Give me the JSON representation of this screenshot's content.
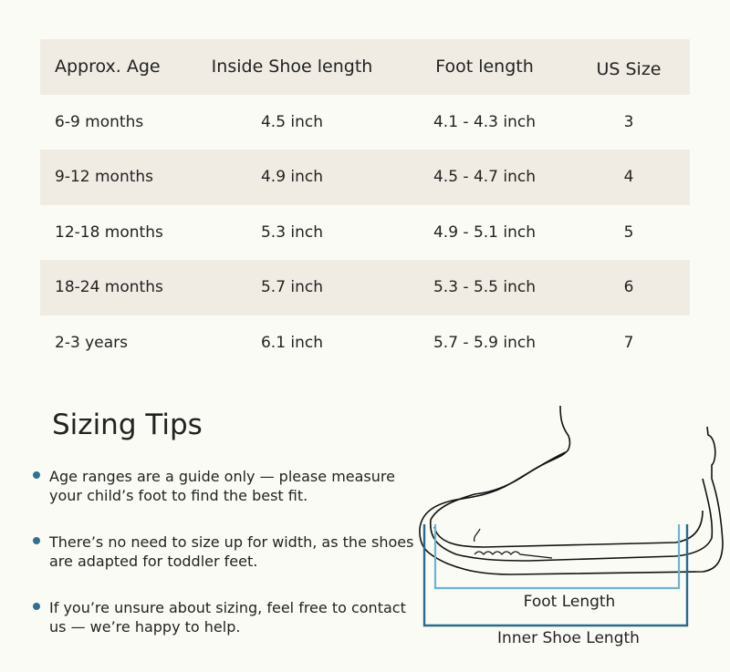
{
  "table": {
    "headers": [
      "Approx. Age",
      "Inside Shoe length",
      "Foot length",
      "US Size"
    ],
    "rows": [
      [
        "6-9 months",
        "4.5 inch",
        "4.1 - 4.3 inch",
        "3"
      ],
      [
        "9-12 months",
        "4.9 inch",
        "4.5 - 4.7 inch",
        "4"
      ],
      [
        "12-18 months",
        "5.3 inch",
        "4.9 - 5.1 inch",
        "5"
      ],
      [
        "18-24 months",
        "5.7 inch",
        "5.3 - 5.5 inch",
        "6"
      ],
      [
        "2-3 years",
        "6.1 inch",
        "5.7 - 5.9 inch",
        "7"
      ]
    ]
  },
  "tips": {
    "title": "Sizing Tips",
    "items": [
      "Age ranges are a guide only — please measure your child’s foot to find the best fit.",
      "There’s no need to size up for width, as the shoes are adapted for toddler feet.",
      "If you’re unsure about sizing, feel free to contact us — we’re happy to help."
    ]
  },
  "diagram": {
    "foot_label": "Foot Length",
    "shoe_label": "Inner Shoe Length"
  },
  "colors": {
    "bullet": "#2e7090",
    "inner_shoe_bracket": "#2a6a8a",
    "foot_bracket": "#6cb4cc",
    "stripe": "#f0ece4"
  }
}
